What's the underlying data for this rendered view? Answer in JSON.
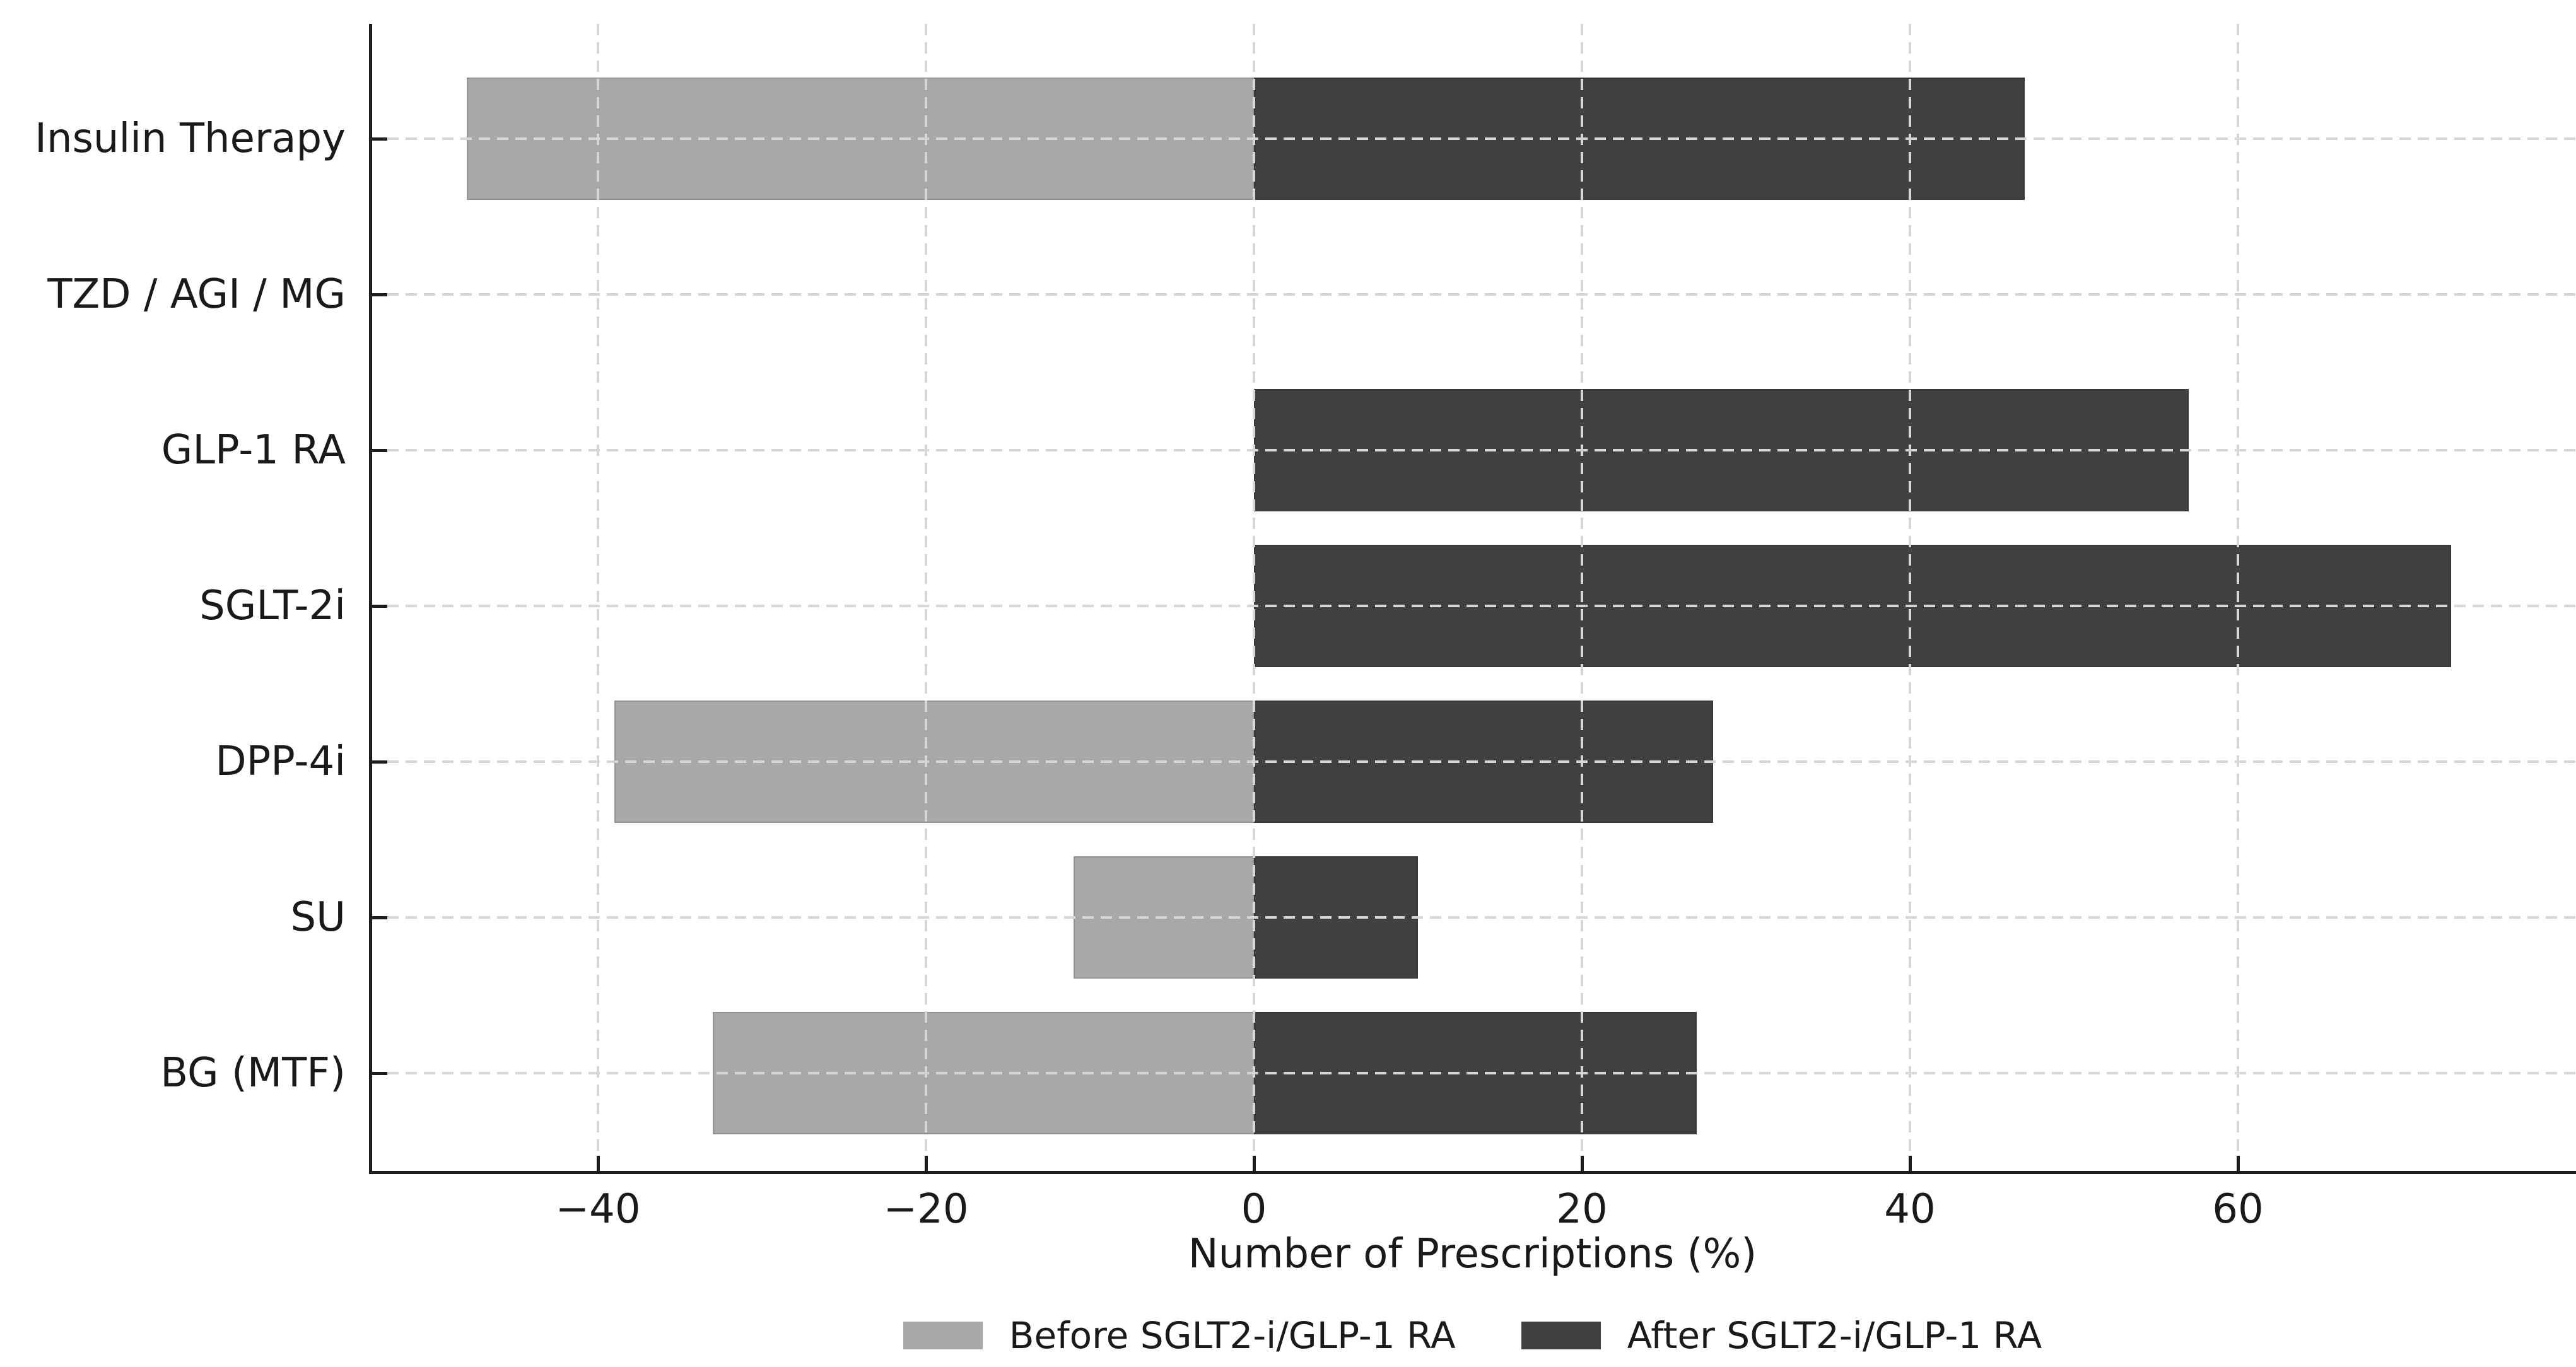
{
  "chart_data": {
    "type": "bar",
    "orientation": "horizontal-diverging",
    "title": "",
    "xlabel": "Number of Prescriptions (%)",
    "ylabel": "",
    "categories": [
      "Insulin Therapy",
      "TZD / AGI / MG",
      "GLP-1 RA",
      "SGLT-2i",
      "DPP-4i",
      "SU",
      "BG (MTF)"
    ],
    "series": [
      {
        "name": "Before SGLT2-i/GLP-1 RA",
        "color": "#a8a8a8",
        "values": [
          -48,
          0,
          0,
          0,
          -39,
          -11,
          -33
        ]
      },
      {
        "name": "After SGLT2-i/GLP-1 RA",
        "color": "#404040",
        "values": [
          47,
          0,
          57,
          73,
          28,
          10,
          27
        ]
      }
    ],
    "xticks": [
      -40,
      -20,
      0,
      20,
      40,
      60
    ],
    "xtick_labels": [
      "−40",
      "−20",
      "0",
      "20",
      "40",
      "60"
    ],
    "xlim": [
      -53.9,
      80.6
    ],
    "grid": "dashed both axes, drawn above bars",
    "ticks_direction": "in",
    "legend_position": "bottom center",
    "axis_color": "#1c1c1c",
    "grid_color": "#d6d6d6"
  }
}
